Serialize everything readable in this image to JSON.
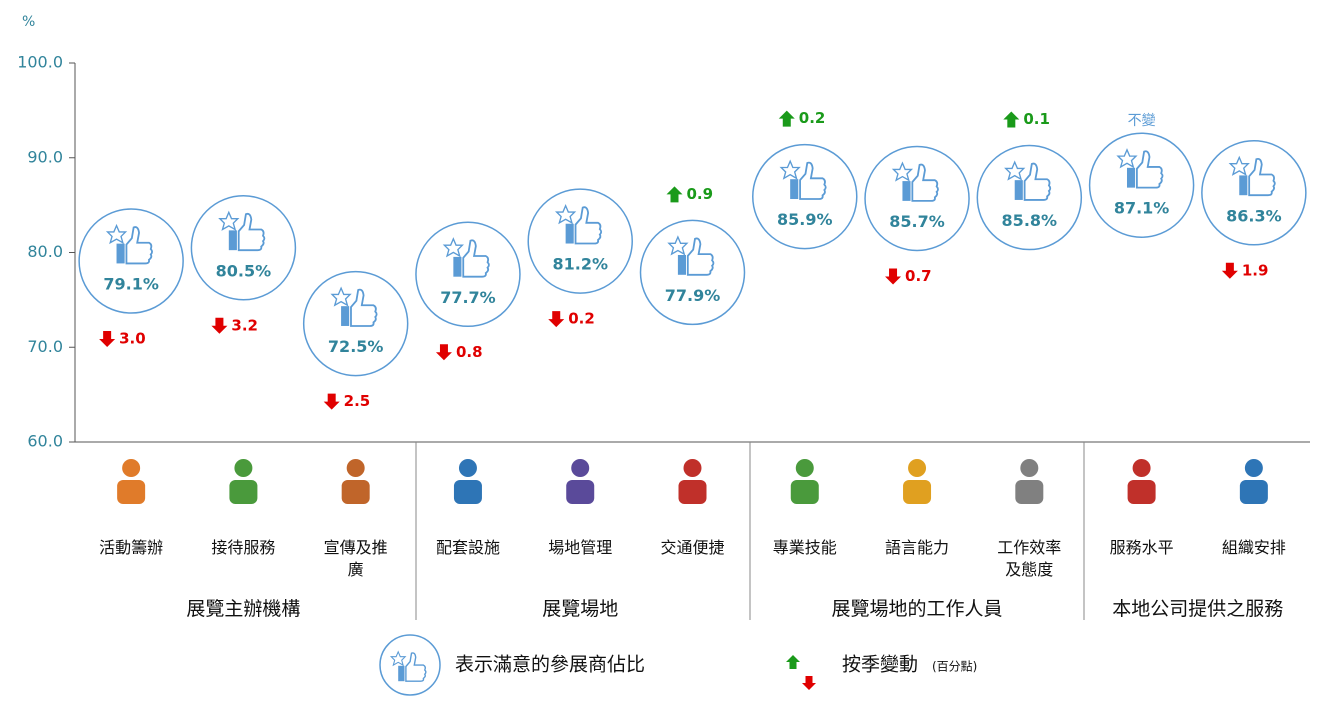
{
  "chart_data": {
    "type": "bubble-dot",
    "y_unit": "%",
    "categories": [
      "活動籌辦",
      "接待服務",
      "宣傳及推廣",
      "配套設施",
      "場地管理",
      "交通便捷",
      "專業技能",
      "語言能力",
      "工作效率及態度",
      "服務水平",
      "組織安排"
    ],
    "groups": [
      "展覽主辦機構",
      "展覽場地",
      "展覽場地的工作人員",
      "本地公司提供之服務"
    ],
    "values": [
      79.1,
      80.5,
      72.5,
      77.7,
      81.2,
      77.9,
      85.9,
      85.7,
      85.8,
      87.1,
      86.3
    ],
    "value_labels": [
      "79.1%",
      "80.5%",
      "72.5%",
      "77.7%",
      "81.2%",
      "77.9%",
      "85.9%",
      "85.7%",
      "85.8%",
      "87.1%",
      "86.3%"
    ],
    "changes": [
      -3.0,
      -3.2,
      -2.5,
      -0.8,
      -0.2,
      0.9,
      0.2,
      -0.7,
      0.1,
      0,
      -1.9
    ],
    "change_labels": [
      "3.0",
      "3.2",
      "2.5",
      "0.8",
      "0.2",
      "0.9",
      "0.2",
      "0.7",
      "0.1",
      "不變",
      "1.9"
    ],
    "ylim": [
      60,
      100
    ],
    "yticks": [
      {
        "value": 60,
        "label": "60.0"
      },
      {
        "value": 70,
        "label": "70.0"
      },
      {
        "value": 80,
        "label": "80.0"
      },
      {
        "value": 90,
        "label": "90.0"
      },
      {
        "value": 100,
        "label": "100.0"
      }
    ],
    "colors": {
      "circle": "#5b9bd5",
      "value": "#31849b",
      "up": "#1a9a1a",
      "down": "#e00000",
      "axis": "#31849b"
    },
    "legend": {
      "circle": "表示滿意的參展商佔比",
      "change": "按季變動",
      "change_unit": "(百分點)"
    }
  }
}
